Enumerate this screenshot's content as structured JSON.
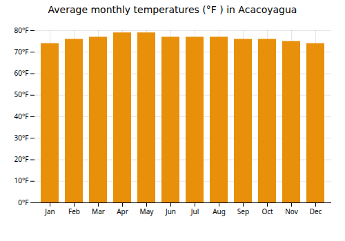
{
  "chart_data": {
    "type": "bar",
    "title": "Average monthly temperatures (°F ) in Acacoyagua",
    "categories": [
      "Jan",
      "Feb",
      "Mar",
      "Apr",
      "May",
      "Jun",
      "Jul",
      "Aug",
      "Sep",
      "Oct",
      "Nov",
      "Dec"
    ],
    "values": [
      74,
      76,
      77,
      79,
      79,
      77,
      77,
      77,
      76,
      76,
      75,
      74
    ],
    "color": "#E8900A",
    "ylim": [
      0,
      80
    ],
    "yticks": [
      {
        "value": 0,
        "label": "0°F"
      },
      {
        "value": 10,
        "label": "10°F"
      },
      {
        "value": 20,
        "label": "20°F"
      },
      {
        "value": 30,
        "label": "30°F"
      },
      {
        "value": 40,
        "label": "40°F"
      },
      {
        "value": 50,
        "label": "50°F"
      },
      {
        "value": 60,
        "label": "60°F"
      },
      {
        "value": 70,
        "label": "70°F"
      },
      {
        "value": 80,
        "label": "80°F"
      }
    ],
    "grid": true
  }
}
